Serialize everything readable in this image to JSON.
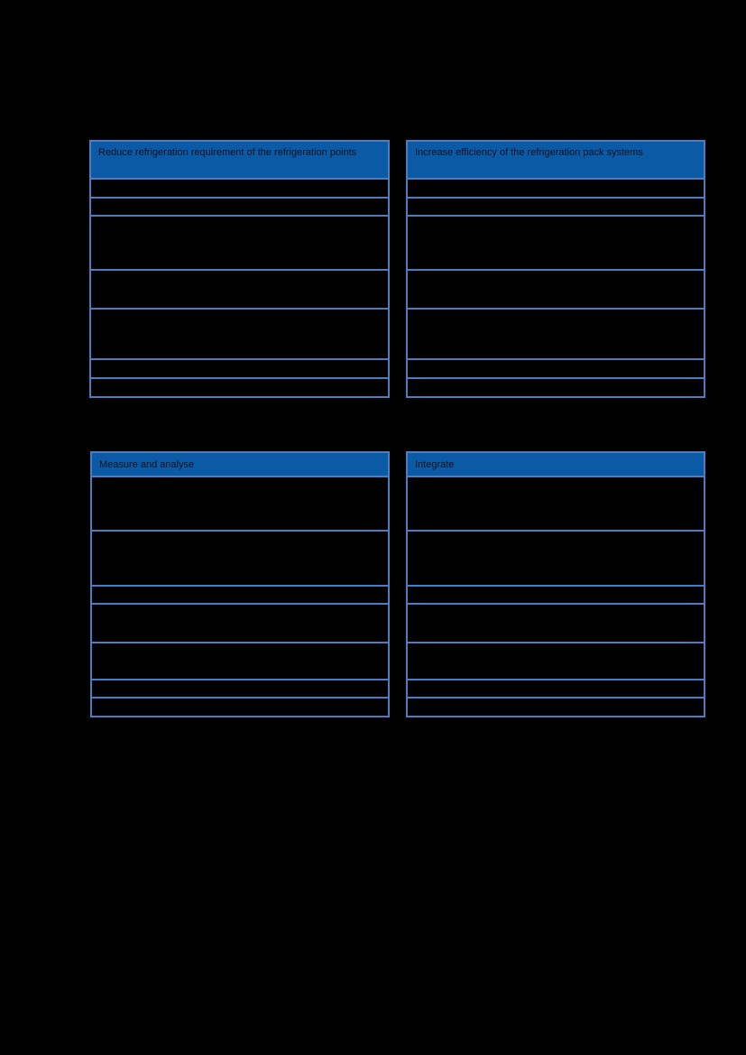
{
  "page": {
    "background": "#000000"
  },
  "colors": {
    "table_border": "#4a7ec1",
    "header_fill": "#0b5aa5",
    "header_text": "#0b1221"
  },
  "tables": [
    {
      "id": "reduce-refrigeration-requirement",
      "title": "Reduce refrigeration requirement of the refrigeration points",
      "rows": [
        "",
        "",
        "",
        "",
        "",
        "",
        ""
      ]
    },
    {
      "id": "increase-pack-efficiency",
      "title": "Increase efficiency of the refrigeration pack systems",
      "rows": [
        "",
        "",
        "",
        "",
        "",
        "",
        ""
      ]
    },
    {
      "id": "measure-and-analyse",
      "title": "Measure and analyse",
      "rows": [
        "",
        "",
        "",
        "",
        "",
        "",
        ""
      ]
    },
    {
      "id": "integrate",
      "title": "Integrate",
      "rows": [
        "",
        "",
        "",
        "",
        "",
        "",
        ""
      ]
    }
  ]
}
